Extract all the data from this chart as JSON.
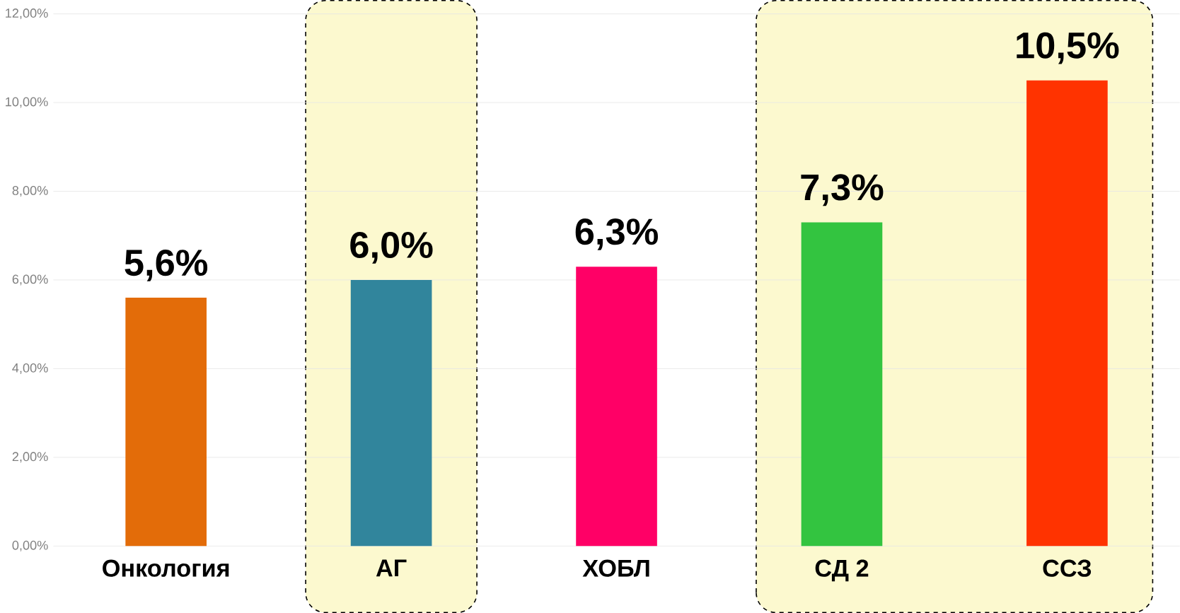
{
  "chart_data": {
    "type": "bar",
    "categories": [
      "Онкология",
      "АГ",
      "ХОБЛ",
      "СД 2",
      "ССЗ"
    ],
    "values": [
      5.6,
      6.0,
      6.3,
      7.3,
      10.5
    ],
    "colors": [
      "#e36c09",
      "#31859c",
      "#ff0066",
      "#33c440",
      "#ff3300"
    ],
    "value_labels": [
      "5,6%",
      "6,0%",
      "6,3%",
      "7,3%",
      "10,5%"
    ],
    "ylim": [
      0,
      12
    ],
    "yticks": [
      {
        "value": 0,
        "label": "0,00%"
      },
      {
        "value": 2,
        "label": "2,00%"
      },
      {
        "value": 4,
        "label": "4,00%"
      },
      {
        "value": 6,
        "label": "6,00%"
      },
      {
        "value": 8,
        "label": "8,00%"
      },
      {
        "value": 10,
        "label": "10,00%"
      },
      {
        "value": 12,
        "label": "12,00%"
      }
    ],
    "grid": "y",
    "bands": [
      {
        "axis": "x",
        "from": "АГ",
        "to": "АГ",
        "color": "#fcf9cf"
      },
      {
        "axis": "x",
        "from": "СД 2",
        "to": "ССЗ",
        "color": "#fcf9cf"
      }
    ]
  }
}
